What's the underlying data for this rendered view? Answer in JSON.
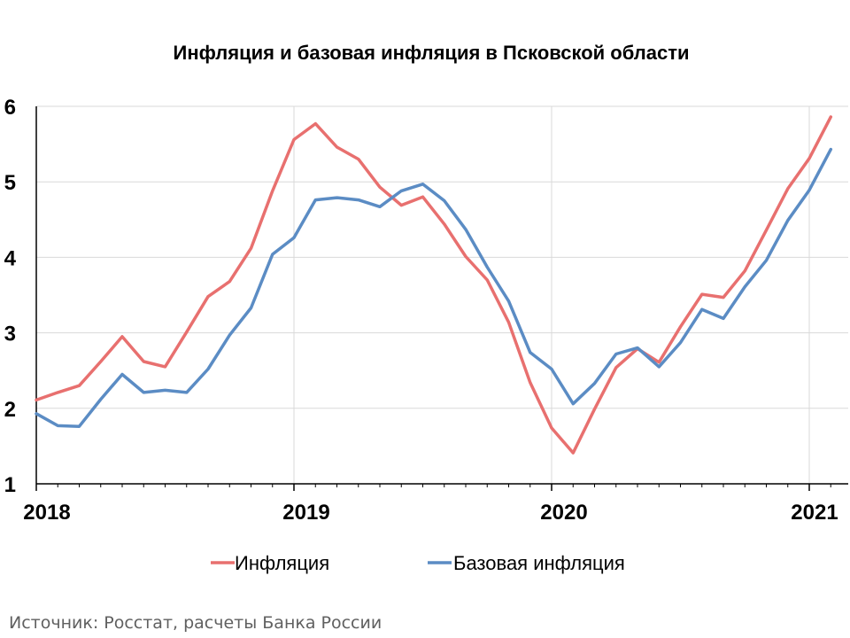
{
  "chart_data": {
    "type": "line",
    "title": "Инфляция и базовая инфляция в Псковской области",
    "x": [
      "2018-01",
      "2018-02",
      "2018-03",
      "2018-04",
      "2018-05",
      "2018-06",
      "2018-07",
      "2018-08",
      "2018-09",
      "2018-10",
      "2018-11",
      "2018-12",
      "2019-01",
      "2019-02",
      "2019-03",
      "2019-04",
      "2019-05",
      "2019-06",
      "2019-07",
      "2019-08",
      "2019-09",
      "2019-10",
      "2019-11",
      "2019-12",
      "2020-01",
      "2020-02",
      "2020-03",
      "2020-04",
      "2020-05",
      "2020-06",
      "2020-07",
      "2020-08",
      "2020-09",
      "2020-10",
      "2020-11",
      "2020-12",
      "2021-01",
      "2021-02"
    ],
    "series": [
      {
        "name": "Инфляция",
        "color": "#e8706f",
        "values": [
          2.11,
          2.21,
          2.3,
          2.62,
          2.95,
          2.62,
          2.55,
          3.01,
          3.48,
          3.68,
          4.12,
          4.88,
          5.56,
          5.77,
          5.46,
          5.3,
          4.93,
          4.69,
          4.8,
          4.44,
          4.01,
          3.7,
          3.14,
          2.34,
          1.74,
          1.41,
          1.99,
          2.54,
          2.79,
          2.61,
          3.08,
          3.51,
          3.47,
          3.82,
          4.36,
          4.91,
          5.31,
          5.86
        ]
      },
      {
        "name": "Базовая инфляция",
        "color": "#5b8cc4",
        "values": [
          1.93,
          1.77,
          1.76,
          2.12,
          2.45,
          2.21,
          2.24,
          2.21,
          2.52,
          2.97,
          3.33,
          4.04,
          4.26,
          4.76,
          4.79,
          4.76,
          4.67,
          4.88,
          4.97,
          4.75,
          4.37,
          3.87,
          3.42,
          2.74,
          2.52,
          2.06,
          2.33,
          2.72,
          2.8,
          2.55,
          2.87,
          3.31,
          3.19,
          3.61,
          3.96,
          4.49,
          4.89,
          5.43
        ]
      }
    ],
    "xtick_labels": [
      "2018",
      "2019",
      "2020",
      "2021"
    ],
    "yticks": [
      1,
      2,
      3,
      4,
      5,
      6
    ],
    "ylim": [
      1,
      6
    ],
    "xlabel": "",
    "ylabel": "",
    "grid": true,
    "legend_position": "bottom"
  },
  "source_text": "Источник: Росстат, расчеты Банка России"
}
